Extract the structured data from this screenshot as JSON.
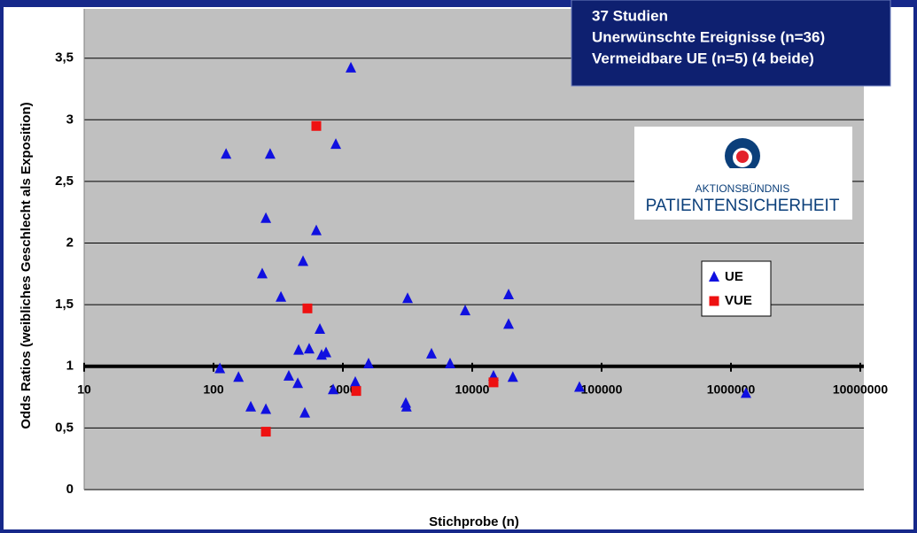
{
  "chart_data": {
    "type": "scatter",
    "xlabel": "Stichprobe (n)",
    "ylabel": "Odds Ratios (weibliches Geschlecht als Exposition)",
    "info_box": [
      "37 Studien",
      "Unerwünschte Ereignisse (n=36)",
      "Vermeidbare UE (n=5) (4 beide)"
    ],
    "logo": [
      "AKTIONSBÜNDNIS",
      "PATIENTENSICHERHEIT"
    ],
    "log_x": true,
    "x_axis_at": 1,
    "grid": true,
    "legend_position": "right",
    "xlim": [
      10,
      10000000
    ],
    "xticks": [
      10,
      100,
      1000,
      10000,
      100000,
      1000000,
      10000000
    ],
    "ylim": [
      0,
      3.9
    ],
    "yticks": [
      0,
      {
        "value": 0.5,
        "label": "0,5"
      },
      1,
      {
        "value": 1.5,
        "label": "1,5"
      },
      2,
      {
        "value": 2.5,
        "label": "2,5"
      },
      3,
      {
        "value": 3.5,
        "label": "3,5"
      }
    ],
    "series": [
      {
        "name": "UE",
        "color": "#1010e0",
        "marker": "triangle",
        "x": [
          112,
          125,
          156,
          194,
          238,
          254,
          254,
          274,
          332,
          382,
          448,
          455,
          492,
          508,
          549,
          623,
          664,
          685,
          741,
          841,
          882,
          1153,
          1247,
          1580,
          3065,
          3100,
          3164,
          4840,
          6740,
          8820,
          14600,
          19100,
          19100,
          20600,
          67400,
          1306000
        ],
        "values": [
          0.98,
          2.72,
          0.91,
          0.67,
          1.75,
          2.2,
          0.65,
          2.72,
          1.56,
          0.92,
          0.86,
          1.13,
          1.85,
          0.62,
          1.14,
          2.1,
          1.3,
          1.09,
          1.11,
          0.81,
          2.8,
          3.42,
          0.87,
          1.02,
          0.7,
          0.67,
          1.55,
          1.1,
          1.02,
          1.45,
          0.92,
          1.58,
          1.34,
          0.91,
          0.83,
          0.78
        ]
      },
      {
        "name": "VUE",
        "color": "#ee1111",
        "marker": "square",
        "x": [
          623,
          532,
          254,
          1268,
          14600
        ],
        "values": [
          2.95,
          1.47,
          0.47,
          0.8,
          0.87
        ]
      }
    ]
  }
}
